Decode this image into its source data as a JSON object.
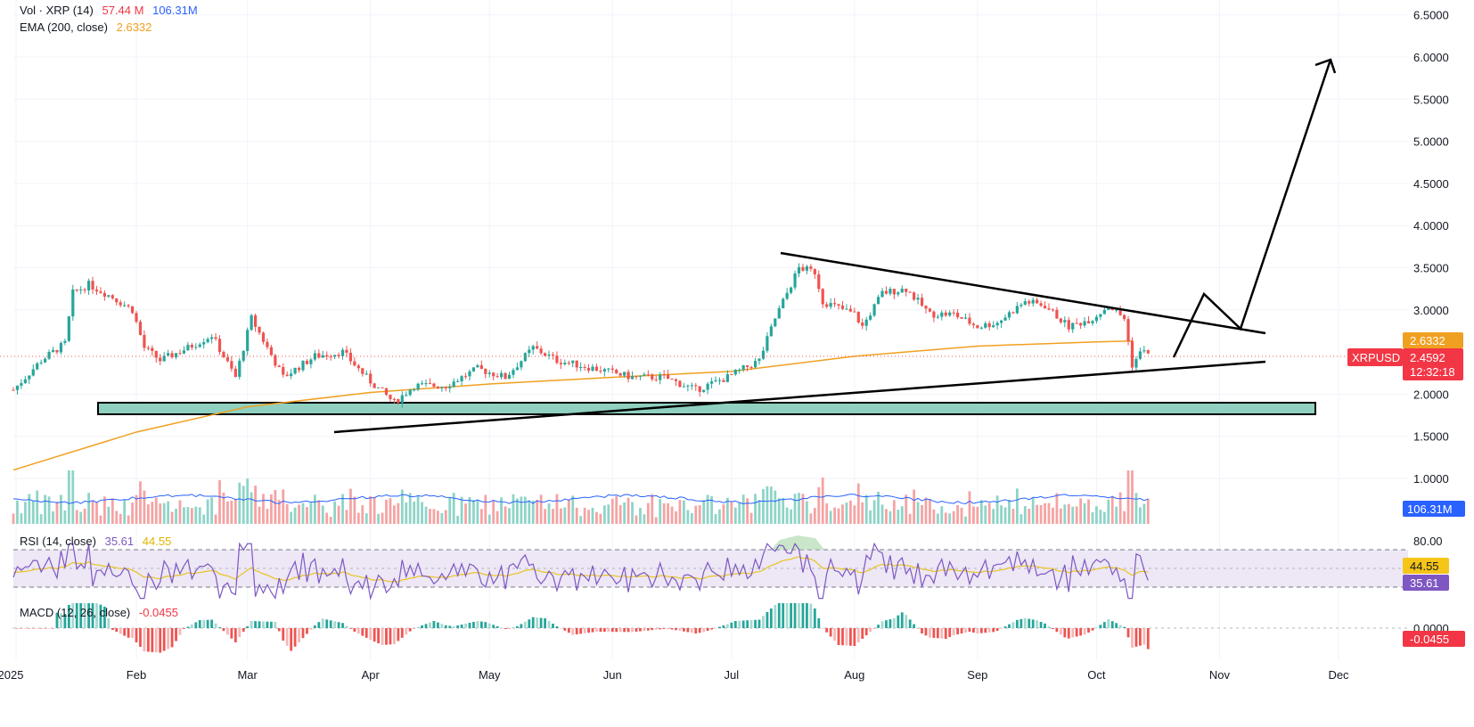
{
  "legends": {
    "vol": {
      "name": "Vol · XRP (14)",
      "v1": "57.44 M",
      "v2": "106.31M",
      "c1": "#f23645",
      "c2": "#2962ff"
    },
    "ema": {
      "name": "EMA (200, close)",
      "v1": "2.6332",
      "c1": "#f0a020"
    },
    "rsi": {
      "name": "RSI (14, close)",
      "v1": "35.61",
      "v2": "44.55",
      "c1": "#7e57c2",
      "c2": "#e0b400"
    },
    "macd": {
      "name": "MACD (12, 26, close)",
      "v1": "-0.0455",
      "c1": "#f23645"
    }
  },
  "price_axis": [
    "6.5000",
    "6.0000",
    "5.5000",
    "5.0000",
    "4.5000",
    "4.0000",
    "3.5000",
    "3.0000",
    "2.0000",
    "1.5000",
    "1.0000"
  ],
  "price_tags": {
    "ema": "2.6332",
    "symbol": "XRPUSD",
    "last": "2.4592",
    "countdown": "12:32:18",
    "vol_avg": "106.31M",
    "rsi_upper": "80.00",
    "rsi_ma": "44.55",
    "rsi": "35.61",
    "macd_zero": "0.0000",
    "macd": "-0.0455"
  },
  "time_axis": [
    "2025",
    "Feb",
    "Mar",
    "Apr",
    "May",
    "Jun",
    "Jul",
    "Aug",
    "Sep",
    "Oct",
    "Nov",
    "Dec"
  ],
  "colors": {
    "up": "#26a69a",
    "down": "#ef5350",
    "ema": "#f0a020",
    "zone": "#8fd0c0",
    "rsi": "#7e57c2",
    "rsi_ma": "#e8c420",
    "vol_ma": "#2962ff"
  },
  "chart_data": {
    "type": "candlestick",
    "symbol": "XRPUSD",
    "x_range": [
      "2025-01-01",
      "2025-12-31"
    ],
    "y_range": [
      1.0,
      6.7
    ],
    "price_keypoints": [
      {
        "date": "2025-01-01",
        "close": 2.05
      },
      {
        "date": "2025-01-08",
        "close": 2.4
      },
      {
        "date": "2025-01-14",
        "close": 2.6
      },
      {
        "date": "2025-01-16",
        "close": 3.2
      },
      {
        "date": "2025-01-20",
        "close": 3.3
      },
      {
        "date": "2025-01-26",
        "close": 3.15
      },
      {
        "date": "2025-01-31",
        "close": 3.0
      },
      {
        "date": "2025-02-03",
        "close": 2.55
      },
      {
        "date": "2025-02-07",
        "close": 2.4
      },
      {
        "date": "2025-02-14",
        "close": 2.55
      },
      {
        "date": "2025-02-20",
        "close": 2.7
      },
      {
        "date": "2025-02-26",
        "close": 2.2
      },
      {
        "date": "2025-03-02",
        "close": 2.9
      },
      {
        "date": "2025-03-10",
        "close": 2.2
      },
      {
        "date": "2025-03-18",
        "close": 2.45
      },
      {
        "date": "2025-03-25",
        "close": 2.5
      },
      {
        "date": "2025-04-01",
        "close": 2.15
      },
      {
        "date": "2025-04-07",
        "close": 1.9
      },
      {
        "date": "2025-04-12",
        "close": 2.1
      },
      {
        "date": "2025-04-20",
        "close": 2.1
      },
      {
        "date": "2025-04-28",
        "close": 2.3
      },
      {
        "date": "2025-05-05",
        "close": 2.2
      },
      {
        "date": "2025-05-12",
        "close": 2.55
      },
      {
        "date": "2025-05-18",
        "close": 2.4
      },
      {
        "date": "2025-05-28",
        "close": 2.3
      },
      {
        "date": "2025-06-06",
        "close": 2.2
      },
      {
        "date": "2025-06-14",
        "close": 2.2
      },
      {
        "date": "2025-06-22",
        "close": 2.05
      },
      {
        "date": "2025-06-30",
        "close": 2.2
      },
      {
        "date": "2025-07-08",
        "close": 2.4
      },
      {
        "date": "2025-07-12",
        "close": 2.9
      },
      {
        "date": "2025-07-18",
        "close": 3.5
      },
      {
        "date": "2025-07-22",
        "close": 3.45
      },
      {
        "date": "2025-07-24",
        "close": 3.1
      },
      {
        "date": "2025-08-01",
        "close": 2.95
      },
      {
        "date": "2025-08-03",
        "close": 2.8
      },
      {
        "date": "2025-08-08",
        "close": 3.2
      },
      {
        "date": "2025-08-14",
        "close": 3.25
      },
      {
        "date": "2025-08-20",
        "close": 2.95
      },
      {
        "date": "2025-08-26",
        "close": 2.95
      },
      {
        "date": "2025-09-01",
        "close": 2.8
      },
      {
        "date": "2025-09-06",
        "close": 2.85
      },
      {
        "date": "2025-09-13",
        "close": 3.1
      },
      {
        "date": "2025-09-18",
        "close": 3.05
      },
      {
        "date": "2025-09-24",
        "close": 2.8
      },
      {
        "date": "2025-09-30",
        "close": 2.9
      },
      {
        "date": "2025-10-04",
        "close": 3.05
      },
      {
        "date": "2025-10-08",
        "close": 2.9
      },
      {
        "date": "2025-10-10",
        "close": 2.35
      },
      {
        "date": "2025-10-13",
        "close": 2.55
      },
      {
        "date": "2025-10-14",
        "close": 2.46
      }
    ],
    "ema200_keypoints": [
      {
        "date": "2025-01-01",
        "value": 1.1
      },
      {
        "date": "2025-02-01",
        "value": 1.55
      },
      {
        "date": "2025-03-01",
        "value": 1.85
      },
      {
        "date": "2025-04-01",
        "value": 2.02
      },
      {
        "date": "2025-05-01",
        "value": 2.12
      },
      {
        "date": "2025-06-01",
        "value": 2.2
      },
      {
        "date": "2025-07-01",
        "value": 2.27
      },
      {
        "date": "2025-08-01",
        "value": 2.45
      },
      {
        "date": "2025-09-01",
        "value": 2.57
      },
      {
        "date": "2025-10-01",
        "value": 2.62
      },
      {
        "date": "2025-10-10",
        "value": 2.63
      }
    ],
    "support_zone": {
      "from": "2025-01-20",
      "to": "2025-11-25",
      "low": 1.75,
      "high": 1.88
    },
    "trendlines": [
      {
        "from_date": "2025-03-20",
        "from_price": 1.6,
        "to_date": "2025-11-10",
        "to_price": 2.4
      },
      {
        "from_date": "2025-07-14",
        "from_price": 3.68,
        "to_date": "2025-11-10",
        "to_price": 2.75
      }
    ],
    "projection": [
      {
        "date": "2025-10-20",
        "price": 2.45
      },
      {
        "date": "2025-10-30",
        "price": 3.2
      },
      {
        "date": "2025-11-08",
        "price": 2.8
      },
      {
        "date": "2025-11-22",
        "price": 5.95
      }
    ],
    "last_price": 2.4592,
    "ema200_last": 2.6332,
    "volume_last": "57.44 M",
    "volume_ma": "106.31M",
    "rsi_last": 35.61,
    "rsi_ma_last": 44.55,
    "macd_hist_last": -0.0455
  }
}
